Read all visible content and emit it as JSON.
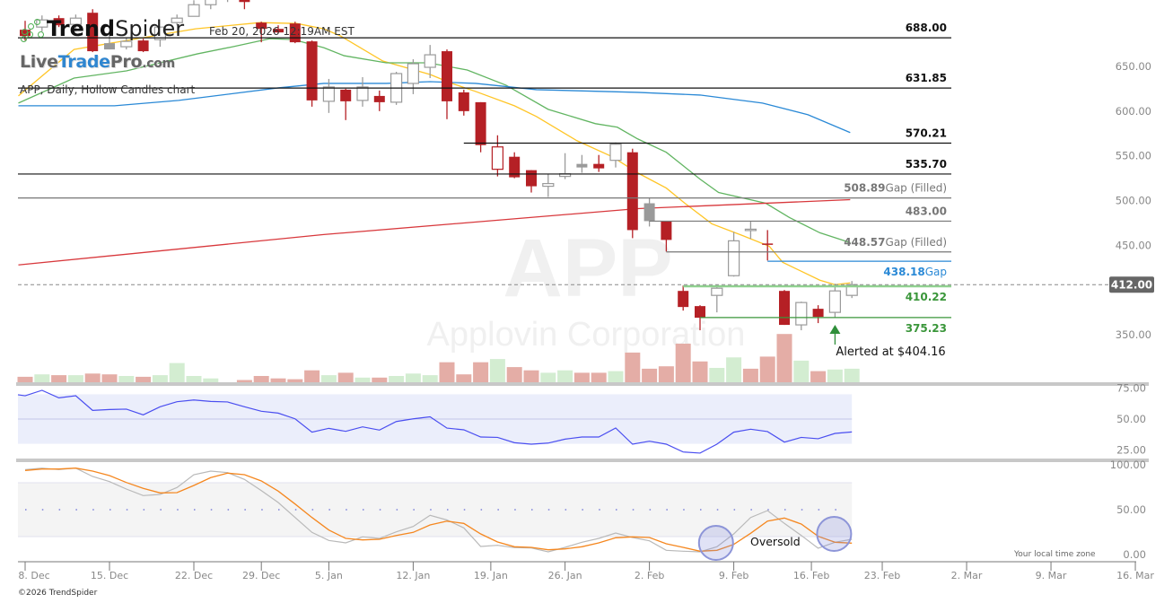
{
  "header": {
    "brand_bold": "Trend",
    "brand_light": "Spider",
    "timestamp": "Feb 20, 2026 12:19AM EST",
    "watermark_site": {
      "part1": "Live",
      "part2": "Trade",
      "part3": "Pro",
      "part4": ".com"
    },
    "subtitle": "APP, Daily, Hollow Candles chart"
  },
  "footer": {
    "copyright": "©2026 TrendSpider",
    "timezone_note": "Your local time zone"
  },
  "colors": {
    "down": "#b52025",
    "neutral": "#9a9a9a",
    "vol_down": "#e4ada6",
    "vol_up": "#d3edd1",
    "ma_fast": "#ffc526",
    "ma_mid": "#62b562",
    "ma_slow": "#2a89d6",
    "ma_long": "#d8383c",
    "rsi": "#4a4ef0",
    "stoch_k": "#b9b9b9",
    "stoch_d": "#f5871f",
    "green_level": "#3a963a",
    "blue_level": "#2a89d6"
  },
  "chart_data": {
    "type": "candlestick",
    "symbol": "APP",
    "watermark_symbol": "APP",
    "watermark_name": "Applovin Corporation",
    "ylim": [
      310,
      730
    ],
    "y_ticks": [
      "650.00",
      "600.00",
      "550.00",
      "500.00",
      "450.00",
      "350.00"
    ],
    "y_tick_values": [
      650,
      600,
      550,
      500,
      450,
      350
    ],
    "last_price": 412.0,
    "last_price_label": "412.00",
    "x_ticks": [
      {
        "label": "8. Dec",
        "idx": 0
      },
      {
        "label": "15. Dec",
        "idx": 5
      },
      {
        "label": "22. Dec",
        "idx": 10
      },
      {
        "label": "29. Dec",
        "idx": 14
      },
      {
        "label": "5. Jan",
        "idx": 18
      },
      {
        "label": "12. Jan",
        "idx": 23
      },
      {
        "label": "19. Jan",
        "idx": 27.6
      },
      {
        "label": "26. Jan",
        "idx": 32
      },
      {
        "label": "2. Feb",
        "idx": 37
      },
      {
        "label": "9. Feb",
        "idx": 42
      },
      {
        "label": "16. Feb",
        "idx": 46.6
      },
      {
        "label": "23. Feb",
        "idx": 50.8
      },
      {
        "label": "2. Mar",
        "idx": 55.8
      },
      {
        "label": "9. Mar",
        "idx": 60.8
      },
      {
        "label": "16. Mar",
        "idx": 65.8
      }
    ],
    "ohlc": [
      [
        697,
        707,
        685,
        690
      ],
      [
        700,
        713,
        695,
        708
      ],
      [
        710,
        713,
        700,
        702
      ],
      [
        703,
        714,
        695,
        710
      ],
      [
        716,
        720,
        672,
        673
      ],
      [
        682,
        695,
        675,
        675
      ],
      [
        678,
        688,
        675,
        684
      ],
      [
        685,
        687,
        672,
        673
      ],
      [
        686,
        700,
        678,
        700
      ],
      [
        705,
        714,
        702,
        710
      ],
      [
        712,
        730,
        714,
        725
      ],
      [
        725,
        740,
        720,
        735
      ],
      [
        735,
        748,
        728,
        742
      ],
      [
        735,
        740,
        720,
        728
      ],
      [
        705,
        706,
        683,
        698
      ],
      [
        698,
        702,
        693,
        694
      ],
      [
        704,
        706,
        682,
        683
      ],
      [
        684,
        685,
        611,
        618
      ],
      [
        617,
        642,
        604,
        633
      ],
      [
        630,
        631,
        596,
        617
      ],
      [
        618,
        644,
        611,
        633
      ],
      [
        623,
        629,
        606,
        616
      ],
      [
        616,
        650,
        613,
        648
      ],
      [
        637,
        664,
        625,
        659
      ],
      [
        655,
        680,
        643,
        669
      ],
      [
        673,
        675,
        597,
        617
      ],
      [
        627,
        630,
        601,
        606
      ],
      [
        616,
        616,
        560,
        568
      ],
      [
        541,
        579,
        533,
        566
      ],
      [
        555,
        560,
        531,
        532
      ],
      [
        540,
        540,
        515,
        522
      ],
      [
        522,
        536,
        510,
        525
      ],
      [
        533,
        559,
        530,
        536
      ],
      [
        547,
        557,
        537,
        543
      ],
      [
        547,
        557,
        538,
        542
      ],
      [
        551,
        571,
        543,
        569
      ],
      [
        560,
        564,
        464,
        473
      ],
      [
        503,
        509,
        477,
        483
      ],
      [
        483,
        483,
        449,
        462
      ],
      [
        405,
        411,
        383,
        387
      ],
      [
        388,
        389,
        361,
        375
      ],
      [
        400,
        412,
        381,
        408
      ],
      [
        422,
        471,
        421,
        461
      ],
      [
        473,
        483,
        463,
        474
      ],
      [
        458,
        473,
        439,
        457
      ],
      [
        405,
        406,
        367,
        367
      ],
      [
        367,
        393,
        361,
        392
      ],
      [
        385,
        389,
        369,
        376
      ],
      [
        381,
        413,
        375,
        405
      ],
      [
        400,
        416,
        397,
        412
      ]
    ],
    "volume": [
      9,
      12,
      11,
      11,
      13,
      12,
      10,
      9,
      11,
      26,
      10,
      7,
      2,
      5,
      10,
      7,
      6,
      17,
      11,
      14,
      8,
      8,
      10,
      13,
      11,
      27,
      12,
      27,
      31,
      21,
      17,
      14,
      17,
      14,
      14,
      16,
      39,
      19,
      22,
      50,
      28,
      20,
      33,
      19,
      34,
      62,
      29,
      16,
      18,
      19
    ],
    "volume_dir": [
      "d",
      "u",
      "d",
      "u",
      "d",
      "d",
      "u",
      "d",
      "u",
      "u",
      "u",
      "u",
      "d",
      "d",
      "d",
      "d",
      "d",
      "d",
      "u",
      "d",
      "u",
      "d",
      "u",
      "u",
      "u",
      "d",
      "d",
      "d",
      "u",
      "d",
      "d",
      "u",
      "u",
      "d",
      "d",
      "u",
      "d",
      "d",
      "d",
      "d",
      "d",
      "u",
      "u",
      "d",
      "d",
      "d",
      "u",
      "d",
      "u",
      "u"
    ],
    "volume_max": 70,
    "moving_averages": [
      {
        "name": "ma_fast",
        "points": [
          [
            -0.4,
            623
          ],
          [
            1.3,
            650
          ],
          [
            2.9,
            675
          ],
          [
            8.5,
            693
          ],
          [
            10.1,
            698
          ],
          [
            13.9,
            705
          ],
          [
            16.1,
            704
          ],
          [
            17.7,
            698
          ],
          [
            18.7,
            690
          ],
          [
            21.2,
            662
          ],
          [
            24,
            647
          ],
          [
            25.3,
            637
          ],
          [
            26.7,
            628
          ],
          [
            29,
            612
          ],
          [
            30.3,
            600
          ],
          [
            32.7,
            573
          ],
          [
            34.8,
            555
          ],
          [
            36.3,
            537
          ],
          [
            38,
            520
          ],
          [
            39.1,
            503
          ],
          [
            40.7,
            480
          ],
          [
            42.5,
            467
          ],
          [
            44.1,
            455
          ],
          [
            44.9,
            437
          ],
          [
            47.1,
            417
          ],
          [
            48,
            412
          ],
          [
            48.9,
            414
          ]
        ]
      },
      {
        "name": "ma_mid",
        "points": [
          [
            -0.4,
            615
          ],
          [
            2.9,
            643
          ],
          [
            6,
            651
          ],
          [
            10.2,
            670
          ],
          [
            12.3,
            678
          ],
          [
            14.5,
            687
          ],
          [
            15.9,
            686
          ],
          [
            17.7,
            677
          ],
          [
            18.9,
            668
          ],
          [
            21.4,
            660
          ],
          [
            23.9,
            660
          ],
          [
            26.2,
            652
          ],
          [
            28.5,
            635
          ],
          [
            31,
            608
          ],
          [
            33.8,
            592
          ],
          [
            35.1,
            588
          ],
          [
            36.3,
            575
          ],
          [
            38,
            560
          ],
          [
            40,
            530
          ],
          [
            41.1,
            515
          ],
          [
            43.9,
            503
          ],
          [
            45.3,
            487
          ],
          [
            47.1,
            470
          ],
          [
            48.9,
            459
          ]
        ]
      },
      {
        "name": "ma_slow",
        "points": [
          [
            -0.4,
            612
          ],
          [
            5.3,
            612
          ],
          [
            9.1,
            618
          ],
          [
            15,
            632
          ],
          [
            17.7,
            637
          ],
          [
            21.4,
            637
          ],
          [
            24,
            639
          ],
          [
            26.7,
            637
          ],
          [
            30.3,
            630
          ],
          [
            36.3,
            627
          ],
          [
            40,
            624
          ],
          [
            43.7,
            615
          ],
          [
            46.4,
            602
          ],
          [
            48.9,
            582
          ]
        ]
      },
      {
        "name": "ma_long",
        "points": [
          [
            -0.4,
            434
          ],
          [
            17.7,
            468
          ],
          [
            36.3,
            497
          ],
          [
            48.9,
            507
          ]
        ]
      }
    ],
    "levels": [
      {
        "value": "688.00",
        "price": 688,
        "start_idx": -0.4,
        "style": "black",
        "suffix": ""
      },
      {
        "value": "631.85",
        "price": 631.85,
        "start_idx": -0.4,
        "style": "black",
        "suffix": ""
      },
      {
        "value": "570.21",
        "price": 570.21,
        "start_idx": 26,
        "style": "black",
        "suffix": ""
      },
      {
        "value": "535.70",
        "price": 535.7,
        "start_idx": -0.4,
        "style": "black",
        "suffix": ""
      },
      {
        "value": "508.89",
        "price": 508.89,
        "start_idx": -0.4,
        "style": "gray",
        "suffix": "Gap (Filled)"
      },
      {
        "value": "483.00",
        "price": 483,
        "start_idx": 37,
        "style": "gray",
        "suffix": ""
      },
      {
        "value": "448.57",
        "price": 448.57,
        "start_idx": 38,
        "style": "gray",
        "suffix": "Gap (Filled)"
      },
      {
        "value": "438.18",
        "price": 438.18,
        "start_idx": 44,
        "style": "blue",
        "suffix": "Gap"
      },
      {
        "value": "410.22",
        "price": 410.22,
        "start_idx": 39,
        "style": "lightgreen",
        "suffix": ""
      },
      {
        "value": "375.23",
        "price": 375.23,
        "start_idx": 40,
        "style": "green",
        "suffix": ""
      }
    ],
    "alert": {
      "label": "Alerted at $404.16",
      "idx": 48
    },
    "rsi": {
      "y_ticks": [
        "75.00",
        "50.00",
        "25.00"
      ],
      "y_tick_values": [
        75,
        50,
        25
      ],
      "band": [
        30,
        70
      ],
      "values": [
        68.8,
        73.2,
        67.1,
        68.8,
        57,
        57.7,
        58,
        53.4,
        59.9,
        64,
        65.4,
        64.2,
        63.8,
        59.9,
        56.3,
        54.8,
        50.2,
        39.4,
        42.5,
        40.1,
        43.7,
        41.1,
        48,
        50.2,
        51.8,
        42.7,
        41.3,
        35.5,
        35.2,
        30.9,
        29.7,
        30.6,
        33.8,
        35.5,
        35.5,
        42.8,
        29.7,
        32.1,
        29.7,
        23.4,
        22.5,
        29.7,
        39.4,
        41.8,
        39.9,
        31.4,
        35.2,
        34.1,
        38.4,
        39.6
      ]
    },
    "stochastic": {
      "y_ticks": [
        "100.00",
        "50.00",
        "0.00"
      ],
      "y_tick_values": [
        100,
        50,
        0
      ],
      "band": [
        20,
        80
      ],
      "k": [
        94.7,
        96.3,
        94.7,
        96.3,
        87,
        81.3,
        73,
        65.7,
        67,
        74.7,
        89,
        93,
        91.3,
        83.7,
        71.3,
        58,
        41.3,
        24.7,
        15.7,
        13,
        19.7,
        18,
        25.3,
        31.3,
        43.7,
        38.5,
        29.7,
        9,
        10.3,
        7.7,
        7.3,
        3,
        8,
        13.7,
        18,
        24,
        19,
        15.3,
        4.7,
        3.7,
        3,
        8.7,
        23,
        41.3,
        49,
        34.7,
        21.3,
        7,
        13.7,
        17
      ],
      "d": [
        93.7,
        95.3,
        95.3,
        96.3,
        93,
        88,
        80.3,
        73.7,
        68.7,
        69,
        77,
        85.7,
        90.7,
        89,
        82,
        70.7,
        56.3,
        41.3,
        27.3,
        18,
        16.3,
        17,
        21.3,
        24.7,
        33,
        37.2,
        34.7,
        23,
        14,
        8.7,
        8,
        5.3,
        6.3,
        8.7,
        13,
        18.7,
        19.7,
        19,
        12,
        8,
        3.7,
        4.7,
        11.3,
        23.7,
        37.3,
        40.7,
        34,
        20.3,
        13.7,
        12.7
      ],
      "markers": [
        {
          "idx": 41,
          "value": 16
        },
        {
          "idx": 48,
          "value": 26
        }
      ],
      "annotation": "Oversold"
    }
  }
}
